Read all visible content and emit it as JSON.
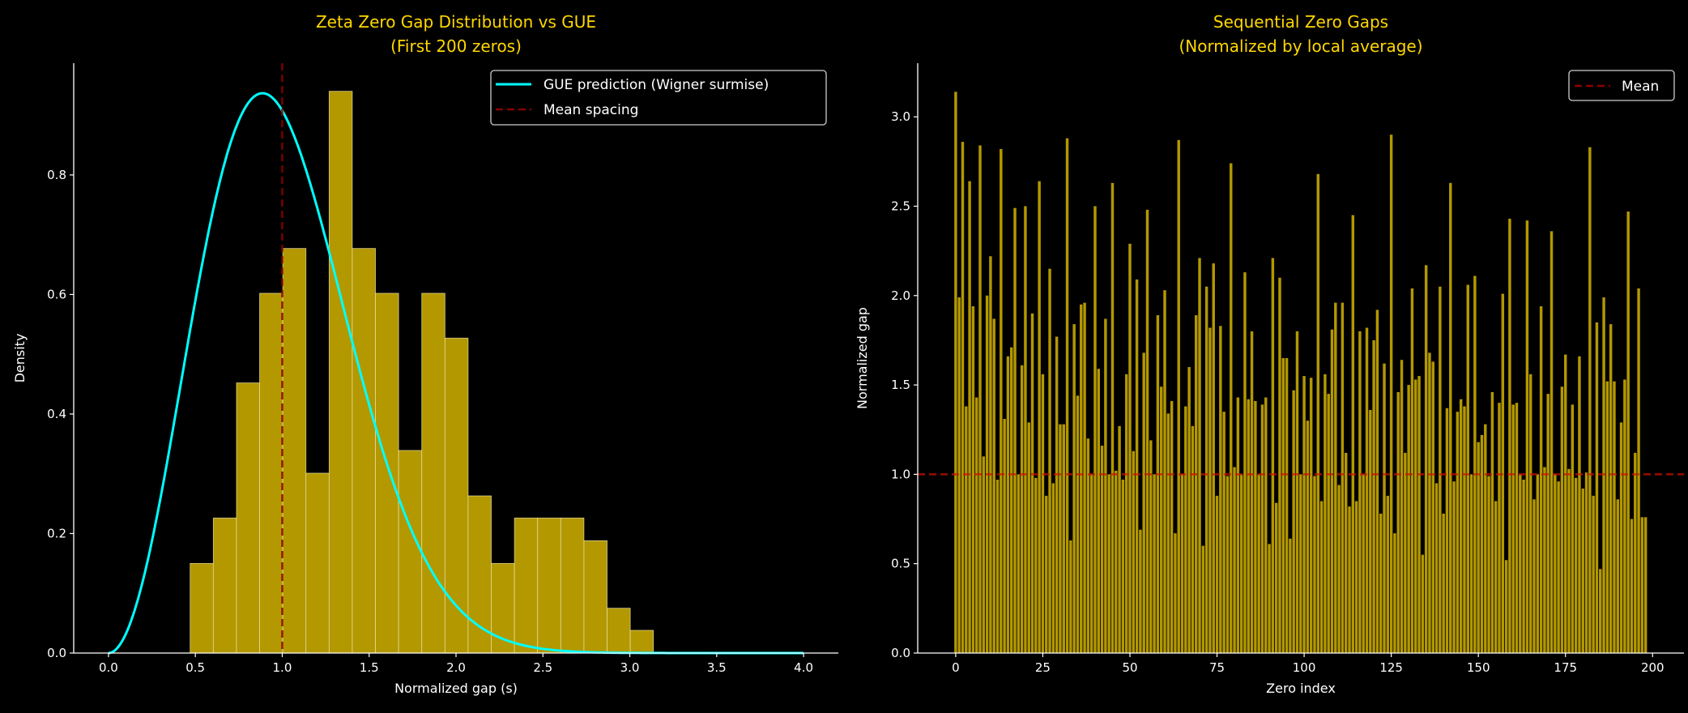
{
  "colors": {
    "background": "#000000",
    "title": "#FFD700",
    "bar": "#B39800",
    "bar_edge": "#EEE6B0",
    "gue_line": "#00FFFF",
    "mean_line": "#8B0000",
    "axis": "#FFFFFF"
  },
  "chart_data": [
    {
      "type": "bar",
      "subtype": "histogram+line",
      "title": "Zeta Zero Gap Distribution vs GUE\n(First 200 zeros)",
      "title_lines": [
        "Zeta Zero Gap Distribution vs GUE",
        "(First 200 zeros)"
      ],
      "xlabel": "Normalized gap (s)",
      "ylabel": "Density",
      "xlim": [
        -0.2,
        4.2
      ],
      "ylim": [
        0,
        0.987
      ],
      "xticks": [
        0.0,
        0.5,
        1.0,
        1.5,
        2.0,
        2.5,
        3.0,
        3.5,
        4.0
      ],
      "xtick_labels": [
        "0.0",
        "0.5",
        "1.0",
        "1.5",
        "2.0",
        "2.5",
        "3.0",
        "3.5",
        "4.0"
      ],
      "yticks": [
        0.0,
        0.2,
        0.4,
        0.6,
        0.8
      ],
      "ytick_labels": [
        "0.0",
        "0.2",
        "0.4",
        "0.6",
        "0.8"
      ],
      "grid": false,
      "histogram": {
        "bin_start": 0.47,
        "bin_width": 0.1333,
        "density": [
          0.15,
          0.226,
          0.452,
          0.602,
          0.677,
          0.301,
          0.94,
          0.677,
          0.602,
          0.339,
          0.602,
          0.527,
          0.263,
          0.15,
          0.226,
          0.226,
          0.226,
          0.188,
          0.075,
          0.038
        ]
      },
      "curve": {
        "name": "GUE prediction (Wigner surmise)",
        "formula": "(32/pi^2) s^2 exp(-4 s^2 / pi)",
        "x_range": [
          0,
          4
        ]
      },
      "vline": {
        "name": "Mean spacing",
        "x": 1.0
      },
      "legend": {
        "placement": "top-right",
        "entries": [
          "GUE prediction (Wigner surmise)",
          "Mean spacing"
        ]
      }
    },
    {
      "type": "bar",
      "title": "Sequential Zero Gaps\n(Normalized by local average)",
      "title_lines": [
        "Sequential Zero Gaps",
        "(Normalized by local average)"
      ],
      "xlabel": "Zero index",
      "ylabel": "Normalized gap",
      "xlim": [
        -10.9,
        209
      ],
      "ylim": [
        0,
        3.3
      ],
      "xticks": [
        0,
        25,
        50,
        75,
        100,
        125,
        150,
        175,
        200
      ],
      "xtick_labels": [
        "0",
        "25",
        "50",
        "75",
        "100",
        "125",
        "150",
        "175",
        "200"
      ],
      "yticks": [
        0.0,
        0.5,
        1.0,
        1.5,
        2.0,
        2.5,
        3.0
      ],
      "ytick_labels": [
        "0.0",
        "0.5",
        "1.0",
        "1.5",
        "2.0",
        "2.5",
        "3.0"
      ],
      "grid": false,
      "values": [
        3.14,
        1.99,
        2.86,
        1.38,
        2.64,
        1.94,
        1.43,
        2.84,
        1.1,
        2.0,
        2.22,
        1.87,
        0.97,
        2.82,
        1.31,
        1.66,
        1.71,
        2.49,
        1.0,
        1.61,
        2.5,
        1.29,
        1.9,
        0.98,
        2.64,
        1.56,
        0.88,
        2.15,
        0.95,
        1.77,
        1.28,
        1.28,
        2.88,
        0.63,
        1.84,
        1.44,
        1.95,
        1.96,
        1.2,
        1.0,
        2.5,
        1.59,
        1.16,
        1.87,
        1.0,
        2.63,
        1.02,
        1.27,
        0.97,
        1.56,
        2.29,
        1.13,
        2.09,
        0.69,
        1.68,
        2.48,
        1.19,
        1.0,
        1.89,
        1.49,
        2.03,
        1.34,
        1.41,
        0.67,
        2.87,
        1.0,
        1.38,
        1.6,
        1.27,
        1.89,
        2.21,
        0.6,
        2.05,
        1.82,
        2.18,
        0.88,
        1.83,
        1.35,
        0.99,
        2.74,
        1.04,
        1.43,
        1.0,
        2.13,
        1.42,
        1.8,
        1.41,
        1.0,
        1.39,
        1.43,
        0.61,
        2.21,
        0.84,
        2.1,
        1.65,
        1.65,
        0.64,
        1.47,
        1.8,
        1.0,
        1.55,
        1.3,
        1.54,
        0.99,
        2.68,
        0.85,
        1.56,
        1.45,
        1.81,
        1.96,
        0.94,
        1.96,
        1.12,
        0.82,
        2.45,
        0.85,
        1.8,
        1.0,
        1.82,
        1.36,
        1.75,
        1.92,
        0.78,
        1.62,
        0.88,
        2.9,
        0.67,
        1.46,
        1.64,
        1.12,
        1.5,
        2.04,
        1.53,
        1.55,
        0.55,
        2.17,
        1.68,
        1.63,
        0.95,
        2.05,
        0.78,
        1.37,
        2.63,
        0.96,
        1.35,
        1.42,
        1.38,
        2.06,
        1.0,
        2.11,
        1.18,
        1.22,
        1.28,
        0.99,
        1.46,
        0.85,
        1.4,
        2.01,
        0.52,
        2.43,
        1.39,
        1.4,
        1.0,
        0.97,
        2.42,
        1.56,
        0.86,
        1.0,
        1.94,
        1.04,
        1.45,
        2.36,
        1.0,
        0.96,
        1.49,
        1.67,
        1.03,
        1.39,
        0.98,
        1.66,
        0.92,
        1.01,
        2.83,
        0.88,
        1.85,
        0.47,
        1.99,
        1.52,
        1.84,
        1.52,
        0.86,
        1.29,
        1.53,
        2.47,
        0.75,
        1.12,
        2.04,
        0.76,
        0.76
      ],
      "hline": {
        "name": "Mean",
        "y": 1.0
      },
      "legend": {
        "placement": "top-right",
        "entries": [
          "Mean"
        ]
      }
    }
  ]
}
